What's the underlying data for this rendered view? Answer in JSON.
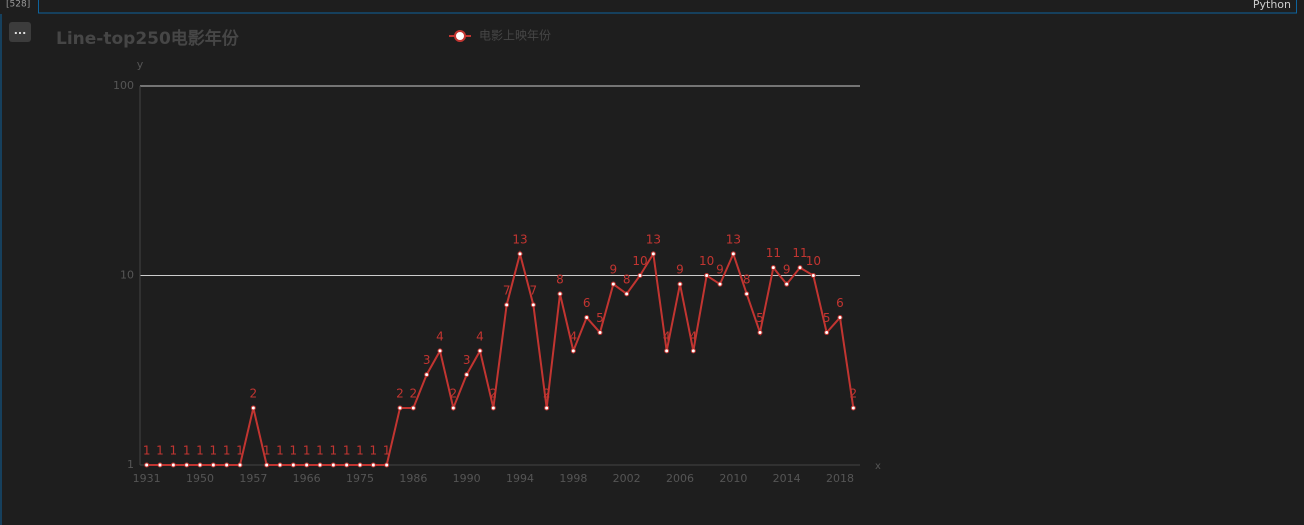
{
  "cell": {
    "prompt": "[528]",
    "language": "Python",
    "menu": "..."
  },
  "chart_data": {
    "type": "line",
    "title": "Line-top250电影年份",
    "x_axis_label": "x",
    "y_axis_label": "y",
    "categories": [
      "1931",
      null,
      null,
      null,
      "1950",
      null,
      null,
      null,
      "1957",
      null,
      null,
      null,
      "1966",
      null,
      null,
      null,
      "1975",
      null,
      null,
      null,
      "1986",
      null,
      null,
      null,
      "1990",
      null,
      null,
      null,
      "1994",
      null,
      null,
      null,
      "1998",
      null,
      null,
      null,
      "2002",
      null,
      null,
      null,
      "2006",
      null,
      null,
      null,
      "2010",
      null,
      null,
      null,
      "2014",
      null,
      null,
      null,
      "2018",
      null
    ],
    "series": [
      {
        "name": "电影上映年份",
        "color": "#c23531",
        "values": [
          1,
          1,
          1,
          1,
          1,
          1,
          1,
          1,
          2,
          1,
          1,
          1,
          1,
          1,
          1,
          1,
          1,
          1,
          1,
          2,
          2,
          3,
          4,
          2,
          3,
          4,
          2,
          7,
          13,
          7,
          2,
          8,
          4,
          6,
          5,
          9,
          8,
          10,
          13,
          4,
          9,
          4,
          10,
          9,
          13,
          8,
          5,
          11,
          9,
          11,
          10,
          5,
          6,
          2
        ]
      }
    ],
    "ylim": [
      1,
      100
    ],
    "yticks": [
      1,
      10,
      100
    ],
    "log_scale": true,
    "grid": true,
    "show_value_labels": true
  }
}
